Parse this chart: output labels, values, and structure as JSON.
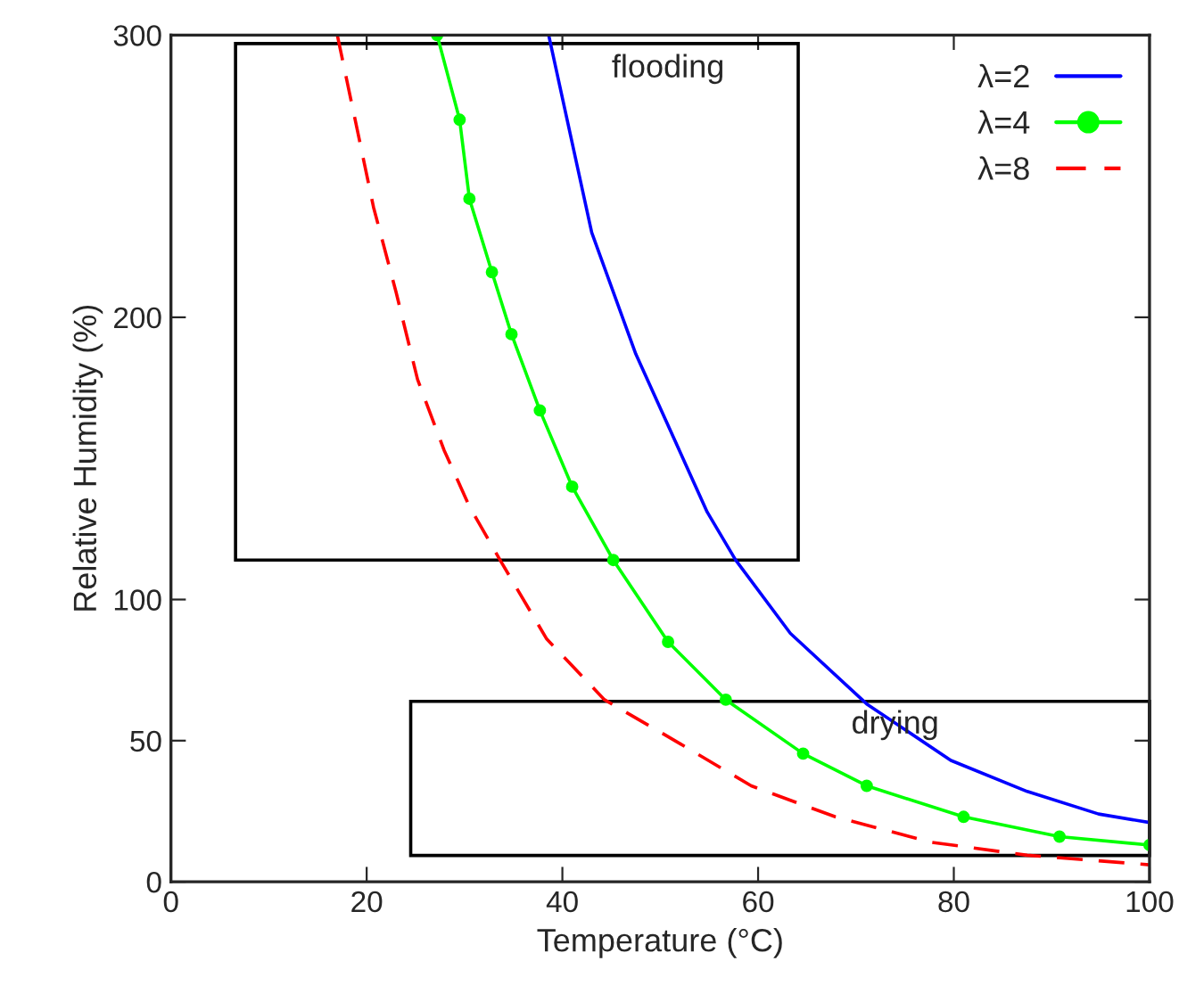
{
  "chart_data": {
    "type": "line",
    "xlabel": "Temperature (°C)",
    "ylabel": "Relative Humidity (%)",
    "xlim": [
      0,
      100
    ],
    "ylim": [
      0,
      300
    ],
    "xticks": [
      0,
      20,
      40,
      60,
      80,
      100
    ],
    "yticks": [
      0,
      50,
      100,
      200,
      300
    ],
    "grid": false,
    "legend": "top right",
    "series": [
      {
        "name": "λ=2",
        "color": "#0000ff",
        "line_style": "solid",
        "marker": "none",
        "x": [
          38.6,
          43,
          47.5,
          54.8,
          57.7,
          63.3,
          71.1,
          79.7,
          87.5,
          94.8,
          100
        ],
        "values": [
          300,
          230,
          187,
          131,
          114,
          88,
          63,
          43,
          32,
          24,
          21
        ]
      },
      {
        "name": "λ=4",
        "color": "#00ff00",
        "line_style": "solid",
        "marker": "circle",
        "x": [
          27.2,
          29.5,
          30.5,
          32.8,
          34.8,
          37.7,
          41,
          45.2,
          50.8,
          56.7,
          64.6,
          71.1,
          81,
          90.8,
          100
        ],
        "values": [
          300,
          270,
          242,
          216,
          194,
          167,
          140,
          114,
          85,
          64.5,
          45.4,
          34,
          23,
          16,
          13
        ]
      },
      {
        "name": "λ=8",
        "color": "#ff0000",
        "line_style": "dashed",
        "marker": "none",
        "x": [
          17,
          18.7,
          20.7,
          23,
          25.2,
          27.9,
          30.5,
          33.8,
          38.4,
          44.3,
          51.5,
          59.3,
          67.9,
          77.7,
          87.5,
          100
        ],
        "values": [
          300,
          272,
          239,
          209,
          178,
          153,
          133,
          113,
          86,
          64.5,
          50,
          34,
          23,
          14,
          9.4,
          6
        ]
      }
    ],
    "annotations": [
      "flooding",
      "drying"
    ]
  }
}
